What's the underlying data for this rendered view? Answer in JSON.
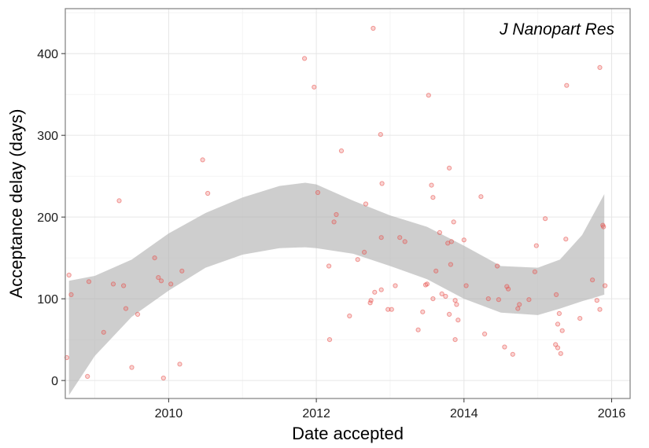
{
  "chart_data": {
    "type": "scatter",
    "title": "",
    "annotation": "J Nanopart Res",
    "xlabel": "Date accepted",
    "ylabel": "Acceptance delay (days)",
    "xlim": [
      2008.6,
      2016.25
    ],
    "ylim": [
      -22,
      455
    ],
    "x_ticks": [
      2010,
      2012,
      2014,
      2016
    ],
    "x_tick_labels": [
      "2010",
      "2012",
      "2014",
      "2016"
    ],
    "y_ticks": [
      0,
      100,
      200,
      300,
      400
    ],
    "y_tick_labels": [
      "0",
      "100",
      "200",
      "300",
      "400"
    ],
    "grid": true,
    "legend": "none",
    "colors": {
      "point": "#e8504a",
      "band_fill": "#b3b3b3",
      "grid_major": "#e6e6e6",
      "grid_minor": "#f2f2f2",
      "border": "#7f7f7f"
    },
    "points": [
      {
        "x": 2008.62,
        "y": 28
      },
      {
        "x": 2008.65,
        "y": 129
      },
      {
        "x": 2008.68,
        "y": 105
      },
      {
        "x": 2008.9,
        "y": 5
      },
      {
        "x": 2008.92,
        "y": 121
      },
      {
        "x": 2009.12,
        "y": 59
      },
      {
        "x": 2009.25,
        "y": 118
      },
      {
        "x": 2009.33,
        "y": 220
      },
      {
        "x": 2009.39,
        "y": 116
      },
      {
        "x": 2009.42,
        "y": 88
      },
      {
        "x": 2009.5,
        "y": 16
      },
      {
        "x": 2009.58,
        "y": 81
      },
      {
        "x": 2009.81,
        "y": 150
      },
      {
        "x": 2009.86,
        "y": 126
      },
      {
        "x": 2009.9,
        "y": 122
      },
      {
        "x": 2009.93,
        "y": 3
      },
      {
        "x": 2010.03,
        "y": 118
      },
      {
        "x": 2010.15,
        "y": 20
      },
      {
        "x": 2010.18,
        "y": 134
      },
      {
        "x": 2010.46,
        "y": 270
      },
      {
        "x": 2010.53,
        "y": 229
      },
      {
        "x": 2011.84,
        "y": 394
      },
      {
        "x": 2011.97,
        "y": 359
      },
      {
        "x": 2012.02,
        "y": 230
      },
      {
        "x": 2012.17,
        "y": 140
      },
      {
        "x": 2012.18,
        "y": 50
      },
      {
        "x": 2012.24,
        "y": 194
      },
      {
        "x": 2012.27,
        "y": 203
      },
      {
        "x": 2012.34,
        "y": 281
      },
      {
        "x": 2012.45,
        "y": 79
      },
      {
        "x": 2012.56,
        "y": 148
      },
      {
        "x": 2012.65,
        "y": 157
      },
      {
        "x": 2012.67,
        "y": 216
      },
      {
        "x": 2012.73,
        "y": 95
      },
      {
        "x": 2012.74,
        "y": 98
      },
      {
        "x": 2012.77,
        "y": 431
      },
      {
        "x": 2012.79,
        "y": 108
      },
      {
        "x": 2012.87,
        "y": 301
      },
      {
        "x": 2012.88,
        "y": 175
      },
      {
        "x": 2012.89,
        "y": 241
      },
      {
        "x": 2012.88,
        "y": 111
      },
      {
        "x": 2012.97,
        "y": 87
      },
      {
        "x": 2013.02,
        "y": 87
      },
      {
        "x": 2013.07,
        "y": 116
      },
      {
        "x": 2013.13,
        "y": 175
      },
      {
        "x": 2013.2,
        "y": 170
      },
      {
        "x": 2013.38,
        "y": 62
      },
      {
        "x": 2013.44,
        "y": 84
      },
      {
        "x": 2013.48,
        "y": 117
      },
      {
        "x": 2013.5,
        "y": 118
      },
      {
        "x": 2013.52,
        "y": 349
      },
      {
        "x": 2013.56,
        "y": 239
      },
      {
        "x": 2013.58,
        "y": 224
      },
      {
        "x": 2013.58,
        "y": 100
      },
      {
        "x": 2013.62,
        "y": 134
      },
      {
        "x": 2013.67,
        "y": 181
      },
      {
        "x": 2013.7,
        "y": 106
      },
      {
        "x": 2013.75,
        "y": 103
      },
      {
        "x": 2013.78,
        "y": 168
      },
      {
        "x": 2013.8,
        "y": 260
      },
      {
        "x": 2013.8,
        "y": 81
      },
      {
        "x": 2013.82,
        "y": 142
      },
      {
        "x": 2013.83,
        "y": 170
      },
      {
        "x": 2013.86,
        "y": 194
      },
      {
        "x": 2013.88,
        "y": 50
      },
      {
        "x": 2013.88,
        "y": 98
      },
      {
        "x": 2013.9,
        "y": 93
      },
      {
        "x": 2013.92,
        "y": 74
      },
      {
        "x": 2014.0,
        "y": 172
      },
      {
        "x": 2014.03,
        "y": 116
      },
      {
        "x": 2014.23,
        "y": 225
      },
      {
        "x": 2014.28,
        "y": 57
      },
      {
        "x": 2014.33,
        "y": 100
      },
      {
        "x": 2014.45,
        "y": 140
      },
      {
        "x": 2014.47,
        "y": 99
      },
      {
        "x": 2014.55,
        "y": 41
      },
      {
        "x": 2014.58,
        "y": 115
      },
      {
        "x": 2014.6,
        "y": 112
      },
      {
        "x": 2014.66,
        "y": 32
      },
      {
        "x": 2014.73,
        "y": 88
      },
      {
        "x": 2014.75,
        "y": 93
      },
      {
        "x": 2014.88,
        "y": 99
      },
      {
        "x": 2014.96,
        "y": 133
      },
      {
        "x": 2014.98,
        "y": 165
      },
      {
        "x": 2015.1,
        "y": 198
      },
      {
        "x": 2015.24,
        "y": 44
      },
      {
        "x": 2015.25,
        "y": 105
      },
      {
        "x": 2015.27,
        "y": 69
      },
      {
        "x": 2015.27,
        "y": 40
      },
      {
        "x": 2015.29,
        "y": 82
      },
      {
        "x": 2015.31,
        "y": 33
      },
      {
        "x": 2015.33,
        "y": 61
      },
      {
        "x": 2015.38,
        "y": 173
      },
      {
        "x": 2015.39,
        "y": 361
      },
      {
        "x": 2015.57,
        "y": 76
      },
      {
        "x": 2015.74,
        "y": 123
      },
      {
        "x": 2015.8,
        "y": 98
      },
      {
        "x": 2015.84,
        "y": 383
      },
      {
        "x": 2015.84,
        "y": 87
      },
      {
        "x": 2015.88,
        "y": 190
      },
      {
        "x": 2015.89,
        "y": 188
      },
      {
        "x": 2015.91,
        "y": 116
      }
    ],
    "confidence_band": {
      "x": [
        2008.65,
        2009.0,
        2009.5,
        2010.0,
        2010.5,
        2011.0,
        2011.5,
        2011.85,
        2012.0,
        2012.5,
        2013.0,
        2013.5,
        2014.0,
        2014.5,
        2015.0,
        2015.3,
        2015.6,
        2015.9
      ],
      "upper": [
        122,
        128,
        148,
        180,
        205,
        224,
        238,
        242,
        240,
        220,
        202,
        188,
        165,
        140,
        138,
        148,
        178,
        228
      ],
      "lower": [
        -18,
        30,
        78,
        110,
        138,
        154,
        162,
        163,
        162,
        155,
        140,
        124,
        100,
        83,
        80,
        88,
        97,
        105
      ]
    }
  }
}
